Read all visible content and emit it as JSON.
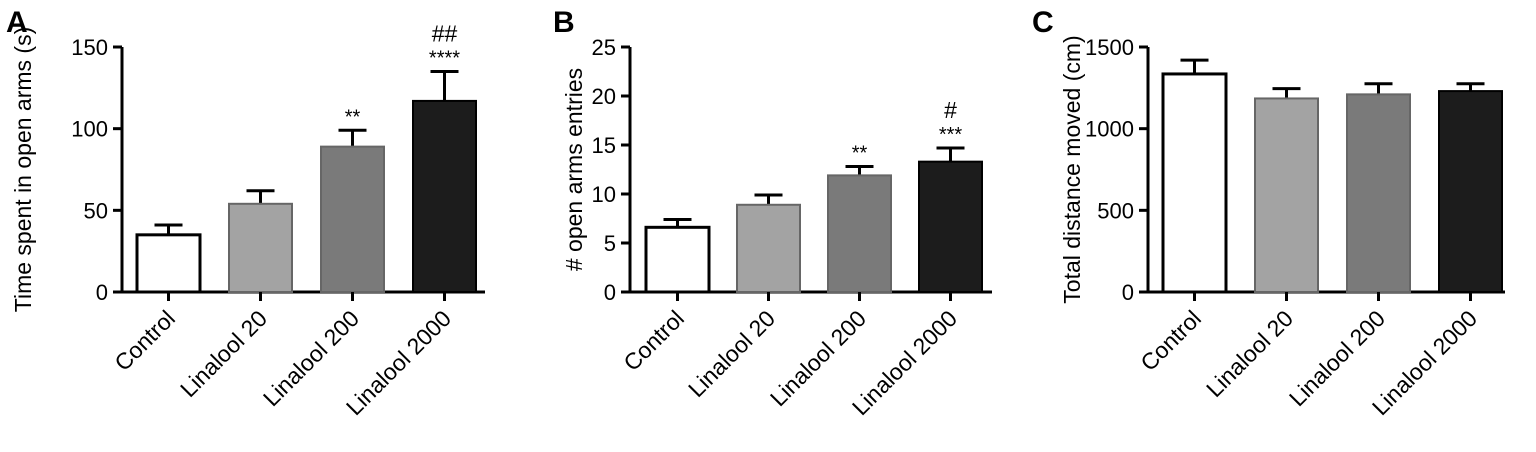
{
  "chart_data": [
    {
      "panel_label": "A",
      "type": "bar",
      "ylabel": "Time spent in open arms (s)",
      "xlabel": "",
      "ylim": [
        0,
        150
      ],
      "yticks": [
        "0",
        "50",
        "100",
        "150"
      ],
      "categories": [
        "Control",
        "Linalool 20",
        "Linalool 200",
        "Linalool 2000"
      ],
      "values": [
        35,
        54,
        89,
        117
      ],
      "errors": [
        6,
        8,
        10,
        18
      ],
      "bar_colors": [
        "#ffffff",
        "#a3a3a3",
        "#7a7a7a",
        "#1c1c1c"
      ],
      "annotations": [
        [],
        [],
        [
          "**"
        ],
        [
          "****",
          "##"
        ]
      ]
    },
    {
      "panel_label": "B",
      "type": "bar",
      "ylabel": "# open arms entries",
      "xlabel": "",
      "ylim": [
        0,
        25
      ],
      "yticks": [
        "0",
        "5",
        "10",
        "15",
        "20",
        "25"
      ],
      "categories": [
        "Control",
        "Linalool 20",
        "Linalool 200",
        "Linalool 2000"
      ],
      "values": [
        6.6,
        8.9,
        11.9,
        13.3
      ],
      "errors": [
        0.8,
        1.0,
        0.9,
        1.4
      ],
      "bar_colors": [
        "#ffffff",
        "#a3a3a3",
        "#7a7a7a",
        "#1c1c1c"
      ],
      "annotations": [
        [],
        [],
        [
          "**"
        ],
        [
          "***",
          "#"
        ]
      ]
    },
    {
      "panel_label": "C",
      "type": "bar",
      "ylabel": "Total distance moved (cm)",
      "xlabel": "",
      "ylim": [
        0,
        1500
      ],
      "yticks": [
        "0",
        "500",
        "1000",
        "1500"
      ],
      "categories": [
        "Control",
        "Linalool 20",
        "Linalool 200",
        "Linalool 2000"
      ],
      "values": [
        1335,
        1185,
        1210,
        1230
      ],
      "errors": [
        85,
        60,
        65,
        45
      ],
      "bar_colors": [
        "#ffffff",
        "#a3a3a3",
        "#7a7a7a",
        "#1c1c1c"
      ],
      "annotations": [
        [],
        [],
        [],
        []
      ]
    }
  ]
}
